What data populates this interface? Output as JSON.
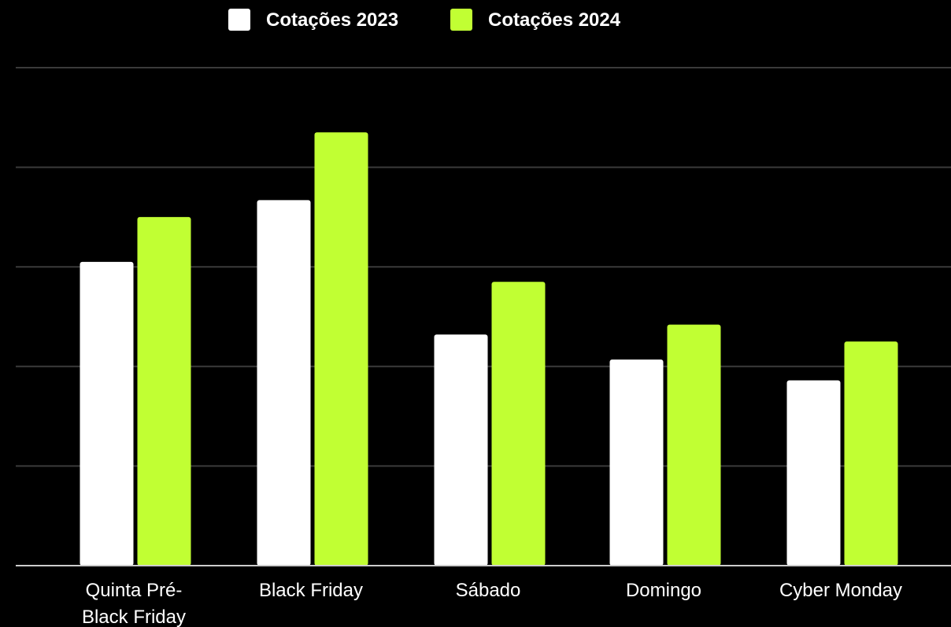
{
  "chart_data": {
    "type": "bar",
    "categories": [
      "Quinta Pré-Black Friday",
      "Black Friday",
      "Sábado",
      "Domingo",
      "Cyber Monday"
    ],
    "category_lines": [
      [
        "Quinta Pré-",
        "Black Friday"
      ],
      [
        "Black Friday"
      ],
      [
        "Sábado"
      ],
      [
        "Domingo"
      ],
      [
        "Cyber Monday"
      ]
    ],
    "series": [
      {
        "name": "Cotações 2023",
        "color": "#ffffff",
        "values": [
          3.05,
          3.67,
          2.32,
          2.07,
          1.86
        ]
      },
      {
        "name": "Cotações 2024",
        "color": "#c1ff33",
        "values": [
          3.5,
          4.35,
          2.85,
          2.42,
          2.25
        ]
      }
    ],
    "ylim": [
      0,
      5
    ],
    "grid": true,
    "legend_position": "top-center",
    "background": "#000000",
    "gridline_color": "#3a3a3a",
    "axis_color": "#cccccc"
  }
}
